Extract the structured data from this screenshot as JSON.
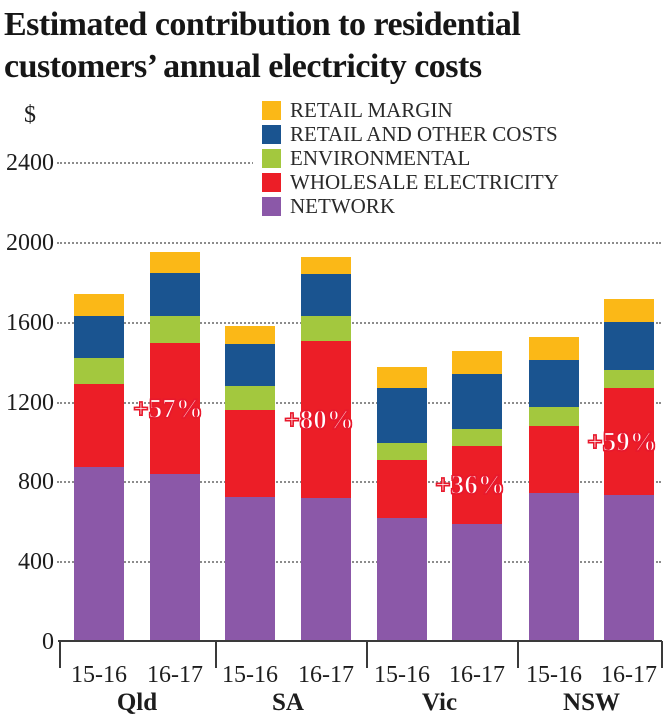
{
  "title": {
    "line1": "Estimated contribution to residential",
    "line2": "customers’ annual electricity costs"
  },
  "y_axis": {
    "unit_label": "$",
    "ticks": [
      2400,
      2000,
      1600,
      1200,
      800,
      400,
      0
    ]
  },
  "x_axis": {
    "groups": [
      "Qld",
      "SA",
      "Vic",
      "NSW"
    ],
    "periods": [
      "15-16",
      "16-17"
    ]
  },
  "legend": [
    {
      "key": "retail_margin",
      "label": "RETAIL MARGIN"
    },
    {
      "key": "retail_and_other",
      "label": "RETAIL AND OTHER COSTS"
    },
    {
      "key": "environmental",
      "label": "ENVIRONMENTAL"
    },
    {
      "key": "wholesale",
      "label": "WHOLESALE ELECTRICITY"
    },
    {
      "key": "network",
      "label": "NETWORK"
    }
  ],
  "colors": {
    "retail_margin": "#FBB817",
    "retail_and_other": "#1A5490",
    "environmental": "#A3C83E",
    "wholesale": "#EC1E27",
    "network": "#8B58A8",
    "annotation_text": "#FFFFFF",
    "annotation_outline": "#E8192C",
    "grid": "#8C8C8C",
    "axis": "#3A3A3A",
    "text": "#1D1D1D"
  },
  "chart_data": {
    "type": "bar",
    "variant": "stacked",
    "title": "Estimated contribution to residential customers’ annual electricity costs",
    "ylabel": "$",
    "ylim": [
      0,
      2400
    ],
    "ytick_step": 400,
    "grid": "horizontal-dotted",
    "legend_position": "top-right",
    "stack_order": [
      "network",
      "wholesale",
      "environmental",
      "retail_and_other",
      "retail_margin"
    ],
    "groups": [
      "Qld",
      "SA",
      "Vic",
      "NSW"
    ],
    "categories": [
      "15-16",
      "16-17"
    ],
    "bars": [
      {
        "group": "Qld",
        "period": "15-16",
        "network": 875,
        "wholesale": 420,
        "environmental": 130,
        "retail_and_other": 210,
        "retail_margin": 110,
        "total": 1745,
        "annotation": null
      },
      {
        "group": "Qld",
        "period": "16-17",
        "network": 840,
        "wholesale": 660,
        "environmental": 135,
        "retail_and_other": 215,
        "retail_margin": 105,
        "total": 1955,
        "annotation": "+57%"
      },
      {
        "group": "SA",
        "period": "15-16",
        "network": 725,
        "wholesale": 440,
        "environmental": 120,
        "retail_and_other": 210,
        "retail_margin": 90,
        "total": 1585,
        "annotation": null
      },
      {
        "group": "SA",
        "period": "16-17",
        "network": 720,
        "wholesale": 790,
        "environmental": 125,
        "retail_and_other": 210,
        "retail_margin": 85,
        "total": 1930,
        "annotation": "+80%"
      },
      {
        "group": "Vic",
        "period": "15-16",
        "network": 620,
        "wholesale": 290,
        "environmental": 90,
        "retail_and_other": 275,
        "retail_margin": 105,
        "total": 1380,
        "annotation": null
      },
      {
        "group": "Vic",
        "period": "16-17",
        "network": 590,
        "wholesale": 395,
        "environmental": 85,
        "retail_and_other": 275,
        "retail_margin": 115,
        "total": 1460,
        "annotation": "+36%"
      },
      {
        "group": "NSW",
        "period": "15-16",
        "network": 745,
        "wholesale": 340,
        "environmental": 95,
        "retail_and_other": 235,
        "retail_margin": 115,
        "total": 1530,
        "annotation": null
      },
      {
        "group": "NSW",
        "period": "16-17",
        "network": 735,
        "wholesale": 540,
        "environmental": 90,
        "retail_and_other": 240,
        "retail_margin": 115,
        "total": 1720,
        "annotation": "+59%"
      }
    ],
    "annotation_note": "percent labels shown on 16-17 wholesale electricity segments"
  }
}
